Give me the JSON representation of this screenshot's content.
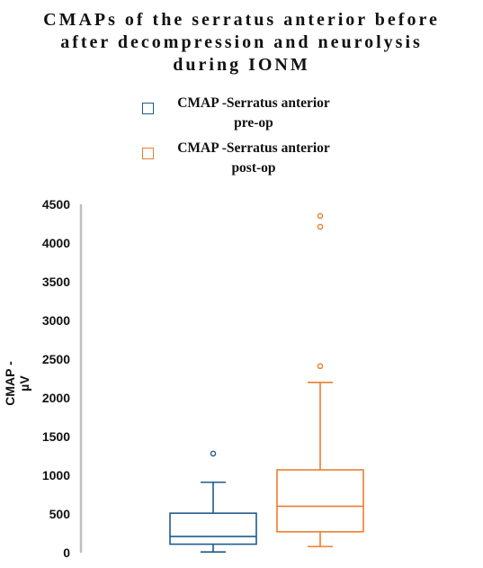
{
  "chart_data": {
    "type": "box",
    "title": "CMAPs of the serratus anterior before\nafter decompression and neurolysis\nduring IONM",
    "xlabel": "",
    "ylabel": "CMAP - µV",
    "ylim": [
      0,
      4500
    ],
    "yticks": [
      "4500",
      "4000",
      "3500",
      "3000",
      "2500",
      "2000",
      "1500",
      "1000",
      "500",
      "0"
    ],
    "grid": false,
    "legend_position": "top",
    "series": [
      {
        "name": "CMAP -Serratus anterior\npre-op",
        "color": "#1f5b8a",
        "whisker_low": 10,
        "q1": 110,
        "median": 210,
        "q3": 510,
        "whisker_high": 910,
        "outliers": [
          1280
        ]
      },
      {
        "name": "CMAP -Serratus anterior\npost-op",
        "color": "#ed7d31",
        "whisker_low": 80,
        "q1": 270,
        "median": 600,
        "q3": 1070,
        "whisker_high": 2200,
        "outliers": [
          2410,
          4210,
          4350
        ]
      }
    ]
  }
}
